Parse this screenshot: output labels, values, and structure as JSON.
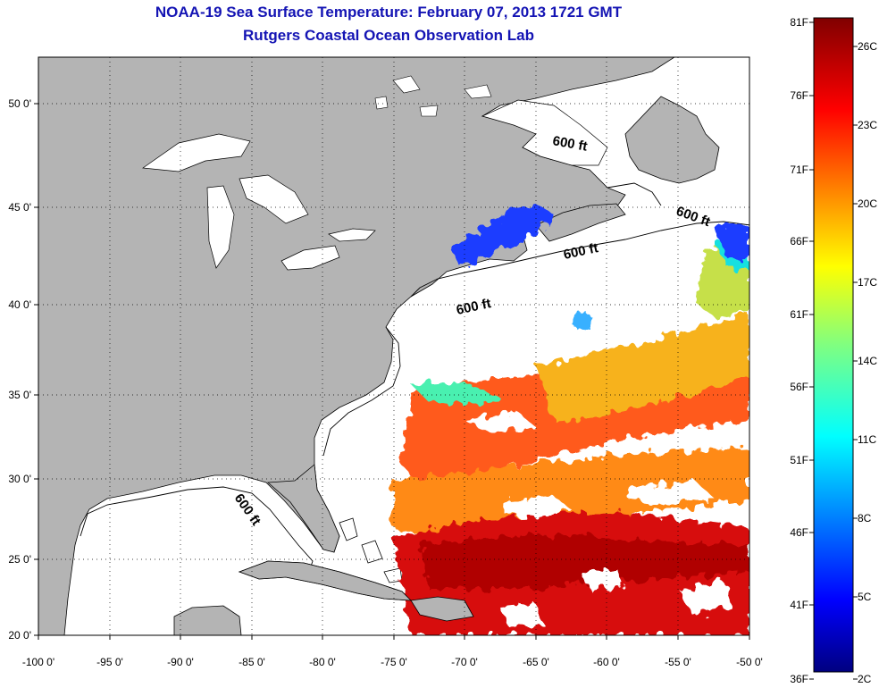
{
  "title": "NOAA-19 Sea Surface Temperature:  February 07, 2013 1721 GMT",
  "subtitle": "Rutgers Coastal Ocean Observation Lab",
  "colors": {
    "land": "#b4b4b4",
    "ocean": "#ffffff",
    "title": "#1414b4",
    "coast": "#000000"
  },
  "lon_ticks": [
    "-100 0'",
    "-95 0'",
    "-90 0'",
    "-85 0'",
    "-80 0'",
    "-75 0'",
    "-70 0'",
    "-65 0'",
    "-60 0'",
    "-55 0'",
    "-50 0'"
  ],
  "lat_ticks": [
    "50 0'",
    "45 0'",
    "40 0'",
    "35 0'",
    "30 0'",
    "25 0'",
    "20 0'"
  ],
  "contour_label": "600 ft",
  "colorbar": {
    "f_labels": [
      "81F",
      "76F",
      "71F",
      "66F",
      "61F",
      "56F",
      "51F",
      "46F",
      "41F",
      "36F"
    ],
    "c_labels": [
      "26C",
      "23C",
      "20C",
      "17C",
      "14C",
      "11C",
      "8C",
      "5C",
      "2C"
    ]
  }
}
